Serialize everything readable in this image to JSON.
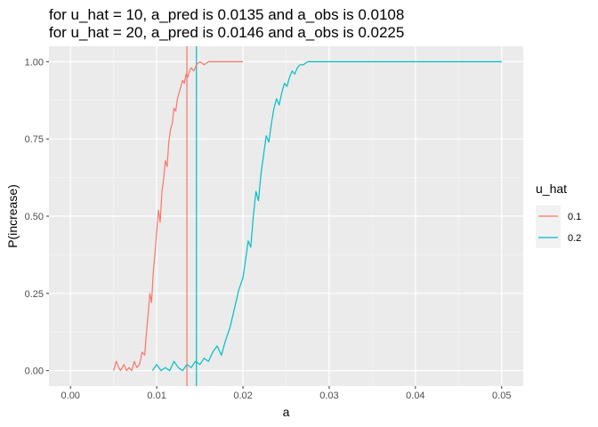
{
  "chart_data": {
    "type": "line",
    "title_lines": [
      "for u_hat = 10, a_pred is 0.0135 and a_obs is 0.0108",
      "for u_hat = 20, a_pred is 0.0146 and a_obs is 0.0225"
    ],
    "xlabel": "a",
    "ylabel": "P(increase)",
    "xlim": [
      -0.0025,
      0.0525
    ],
    "ylim": [
      -0.05,
      1.05
    ],
    "x_ticks": [
      0.0,
      0.01,
      0.02,
      0.03,
      0.04,
      0.05
    ],
    "x_tick_labels": [
      "0.00",
      "0.01",
      "0.02",
      "0.03",
      "0.04",
      "0.05"
    ],
    "y_ticks": [
      0.0,
      0.25,
      0.5,
      0.75,
      1.0
    ],
    "y_tick_labels": [
      "0.00",
      "0.25",
      "0.50",
      "0.75",
      "1.00"
    ],
    "grid": true,
    "legend": {
      "title": "u_hat",
      "position": "right"
    },
    "series": [
      {
        "name": "0.1",
        "color": "#F8766D",
        "x": [
          0.005,
          0.0053,
          0.0056,
          0.0058,
          0.0062,
          0.0065,
          0.0068,
          0.0071,
          0.0074,
          0.0077,
          0.008,
          0.0083,
          0.0086,
          0.0088,
          0.009,
          0.0092,
          0.0094,
          0.0096,
          0.0098,
          0.01,
          0.0102,
          0.0104,
          0.0106,
          0.0108,
          0.011,
          0.0112,
          0.0114,
          0.0116,
          0.0118,
          0.012,
          0.0122,
          0.0124,
          0.0126,
          0.0128,
          0.013,
          0.0132,
          0.0134,
          0.0136,
          0.0138,
          0.014,
          0.0143,
          0.0146,
          0.015,
          0.0155,
          0.016,
          0.017,
          0.018,
          0.019,
          0.02
        ],
        "y": [
          0.0,
          0.03,
          0.01,
          0.0,
          0.02,
          0.0,
          0.01,
          0.0,
          0.03,
          0.01,
          0.02,
          0.06,
          0.05,
          0.12,
          0.18,
          0.25,
          0.22,
          0.32,
          0.38,
          0.45,
          0.52,
          0.48,
          0.58,
          0.62,
          0.68,
          0.66,
          0.74,
          0.78,
          0.8,
          0.85,
          0.84,
          0.88,
          0.9,
          0.92,
          0.94,
          0.93,
          0.96,
          0.95,
          0.97,
          0.98,
          0.97,
          0.99,
          1.0,
          0.99,
          1.0,
          1.0,
          1.0,
          1.0,
          1.0
        ]
      },
      {
        "name": "0.2",
        "color": "#00BFC4",
        "x": [
          0.0095,
          0.01,
          0.0105,
          0.011,
          0.0115,
          0.012,
          0.0125,
          0.013,
          0.0135,
          0.014,
          0.0145,
          0.015,
          0.0155,
          0.016,
          0.0165,
          0.017,
          0.0175,
          0.018,
          0.0185,
          0.019,
          0.0195,
          0.02,
          0.0203,
          0.0206,
          0.0209,
          0.0212,
          0.0215,
          0.0218,
          0.0221,
          0.0224,
          0.0227,
          0.023,
          0.0233,
          0.0236,
          0.0239,
          0.0242,
          0.0245,
          0.0248,
          0.0251,
          0.0254,
          0.0257,
          0.026,
          0.0263,
          0.0266,
          0.027,
          0.0275,
          0.028,
          0.029,
          0.03,
          0.035,
          0.04,
          0.045,
          0.05
        ],
        "y": [
          0.0,
          0.02,
          0.0,
          0.01,
          0.0,
          0.03,
          0.01,
          0.0,
          0.02,
          0.01,
          0.03,
          0.02,
          0.04,
          0.03,
          0.06,
          0.08,
          0.05,
          0.1,
          0.14,
          0.2,
          0.26,
          0.3,
          0.36,
          0.42,
          0.4,
          0.5,
          0.58,
          0.55,
          0.64,
          0.7,
          0.76,
          0.74,
          0.8,
          0.85,
          0.88,
          0.86,
          0.9,
          0.93,
          0.92,
          0.95,
          0.97,
          0.96,
          0.98,
          0.99,
          0.99,
          1.0,
          1.0,
          1.0,
          1.0,
          1.0,
          1.0,
          1.0,
          1.0
        ]
      }
    ],
    "vlines": [
      {
        "x": 0.0135,
        "color": "#F8766D"
      },
      {
        "x": 0.0146,
        "color": "#00BFC4"
      }
    ]
  }
}
